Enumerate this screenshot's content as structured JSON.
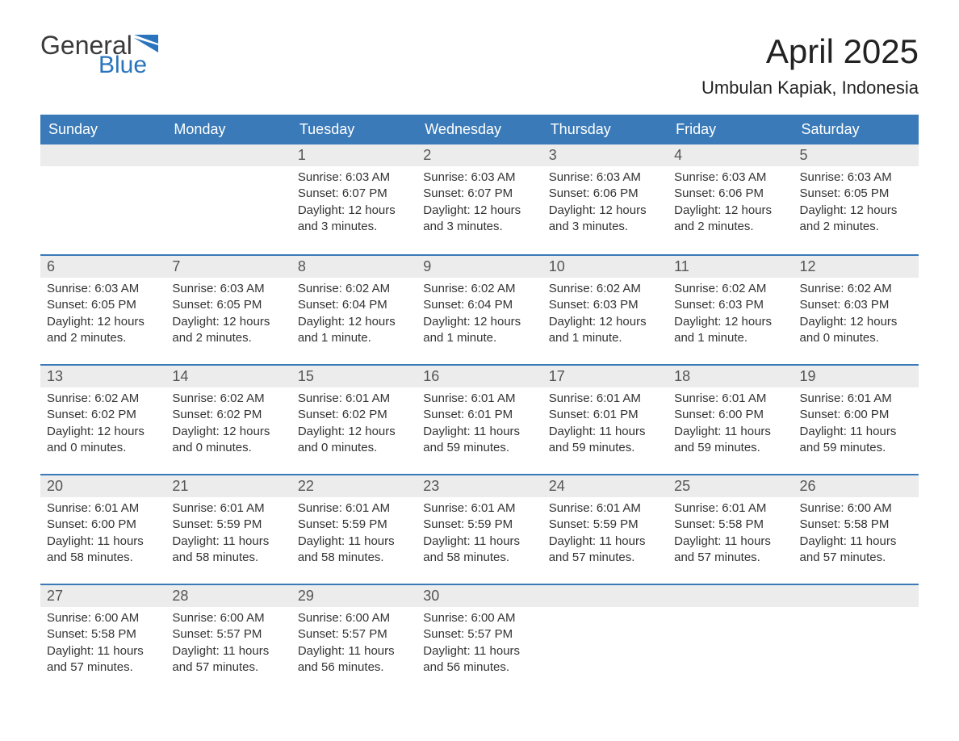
{
  "logo": {
    "text1": "General",
    "text2": "Blue",
    "flag_color": "#2a74bd"
  },
  "title": "April 2025",
  "location": "Umbulan Kapiak, Indonesia",
  "colors": {
    "header_bg": "#3a7ab8",
    "header_text": "#ffffff",
    "daynum_bg": "#ececec",
    "week_border": "#3a7ab8"
  },
  "weekdays": [
    "Sunday",
    "Monday",
    "Tuesday",
    "Wednesday",
    "Thursday",
    "Friday",
    "Saturday"
  ],
  "weeks": [
    [
      {
        "n": "",
        "sr": "",
        "ss": "",
        "dl": ""
      },
      {
        "n": "",
        "sr": "",
        "ss": "",
        "dl": ""
      },
      {
        "n": "1",
        "sr": "Sunrise: 6:03 AM",
        "ss": "Sunset: 6:07 PM",
        "dl": "Daylight: 12 hours and 3 minutes."
      },
      {
        "n": "2",
        "sr": "Sunrise: 6:03 AM",
        "ss": "Sunset: 6:07 PM",
        "dl": "Daylight: 12 hours and 3 minutes."
      },
      {
        "n": "3",
        "sr": "Sunrise: 6:03 AM",
        "ss": "Sunset: 6:06 PM",
        "dl": "Daylight: 12 hours and 3 minutes."
      },
      {
        "n": "4",
        "sr": "Sunrise: 6:03 AM",
        "ss": "Sunset: 6:06 PM",
        "dl": "Daylight: 12 hours and 2 minutes."
      },
      {
        "n": "5",
        "sr": "Sunrise: 6:03 AM",
        "ss": "Sunset: 6:05 PM",
        "dl": "Daylight: 12 hours and 2 minutes."
      }
    ],
    [
      {
        "n": "6",
        "sr": "Sunrise: 6:03 AM",
        "ss": "Sunset: 6:05 PM",
        "dl": "Daylight: 12 hours and 2 minutes."
      },
      {
        "n": "7",
        "sr": "Sunrise: 6:03 AM",
        "ss": "Sunset: 6:05 PM",
        "dl": "Daylight: 12 hours and 2 minutes."
      },
      {
        "n": "8",
        "sr": "Sunrise: 6:02 AM",
        "ss": "Sunset: 6:04 PM",
        "dl": "Daylight: 12 hours and 1 minute."
      },
      {
        "n": "9",
        "sr": "Sunrise: 6:02 AM",
        "ss": "Sunset: 6:04 PM",
        "dl": "Daylight: 12 hours and 1 minute."
      },
      {
        "n": "10",
        "sr": "Sunrise: 6:02 AM",
        "ss": "Sunset: 6:03 PM",
        "dl": "Daylight: 12 hours and 1 minute."
      },
      {
        "n": "11",
        "sr": "Sunrise: 6:02 AM",
        "ss": "Sunset: 6:03 PM",
        "dl": "Daylight: 12 hours and 1 minute."
      },
      {
        "n": "12",
        "sr": "Sunrise: 6:02 AM",
        "ss": "Sunset: 6:03 PM",
        "dl": "Daylight: 12 hours and 0 minutes."
      }
    ],
    [
      {
        "n": "13",
        "sr": "Sunrise: 6:02 AM",
        "ss": "Sunset: 6:02 PM",
        "dl": "Daylight: 12 hours and 0 minutes."
      },
      {
        "n": "14",
        "sr": "Sunrise: 6:02 AM",
        "ss": "Sunset: 6:02 PM",
        "dl": "Daylight: 12 hours and 0 minutes."
      },
      {
        "n": "15",
        "sr": "Sunrise: 6:01 AM",
        "ss": "Sunset: 6:02 PM",
        "dl": "Daylight: 12 hours and 0 minutes."
      },
      {
        "n": "16",
        "sr": "Sunrise: 6:01 AM",
        "ss": "Sunset: 6:01 PM",
        "dl": "Daylight: 11 hours and 59 minutes."
      },
      {
        "n": "17",
        "sr": "Sunrise: 6:01 AM",
        "ss": "Sunset: 6:01 PM",
        "dl": "Daylight: 11 hours and 59 minutes."
      },
      {
        "n": "18",
        "sr": "Sunrise: 6:01 AM",
        "ss": "Sunset: 6:00 PM",
        "dl": "Daylight: 11 hours and 59 minutes."
      },
      {
        "n": "19",
        "sr": "Sunrise: 6:01 AM",
        "ss": "Sunset: 6:00 PM",
        "dl": "Daylight: 11 hours and 59 minutes."
      }
    ],
    [
      {
        "n": "20",
        "sr": "Sunrise: 6:01 AM",
        "ss": "Sunset: 6:00 PM",
        "dl": "Daylight: 11 hours and 58 minutes."
      },
      {
        "n": "21",
        "sr": "Sunrise: 6:01 AM",
        "ss": "Sunset: 5:59 PM",
        "dl": "Daylight: 11 hours and 58 minutes."
      },
      {
        "n": "22",
        "sr": "Sunrise: 6:01 AM",
        "ss": "Sunset: 5:59 PM",
        "dl": "Daylight: 11 hours and 58 minutes."
      },
      {
        "n": "23",
        "sr": "Sunrise: 6:01 AM",
        "ss": "Sunset: 5:59 PM",
        "dl": "Daylight: 11 hours and 58 minutes."
      },
      {
        "n": "24",
        "sr": "Sunrise: 6:01 AM",
        "ss": "Sunset: 5:59 PM",
        "dl": "Daylight: 11 hours and 57 minutes."
      },
      {
        "n": "25",
        "sr": "Sunrise: 6:01 AM",
        "ss": "Sunset: 5:58 PM",
        "dl": "Daylight: 11 hours and 57 minutes."
      },
      {
        "n": "26",
        "sr": "Sunrise: 6:00 AM",
        "ss": "Sunset: 5:58 PM",
        "dl": "Daylight: 11 hours and 57 minutes."
      }
    ],
    [
      {
        "n": "27",
        "sr": "Sunrise: 6:00 AM",
        "ss": "Sunset: 5:58 PM",
        "dl": "Daylight: 11 hours and 57 minutes."
      },
      {
        "n": "28",
        "sr": "Sunrise: 6:00 AM",
        "ss": "Sunset: 5:57 PM",
        "dl": "Daylight: 11 hours and 57 minutes."
      },
      {
        "n": "29",
        "sr": "Sunrise: 6:00 AM",
        "ss": "Sunset: 5:57 PM",
        "dl": "Daylight: 11 hours and 56 minutes."
      },
      {
        "n": "30",
        "sr": "Sunrise: 6:00 AM",
        "ss": "Sunset: 5:57 PM",
        "dl": "Daylight: 11 hours and 56 minutes."
      },
      {
        "n": "",
        "sr": "",
        "ss": "",
        "dl": ""
      },
      {
        "n": "",
        "sr": "",
        "ss": "",
        "dl": ""
      },
      {
        "n": "",
        "sr": "",
        "ss": "",
        "dl": ""
      }
    ]
  ]
}
